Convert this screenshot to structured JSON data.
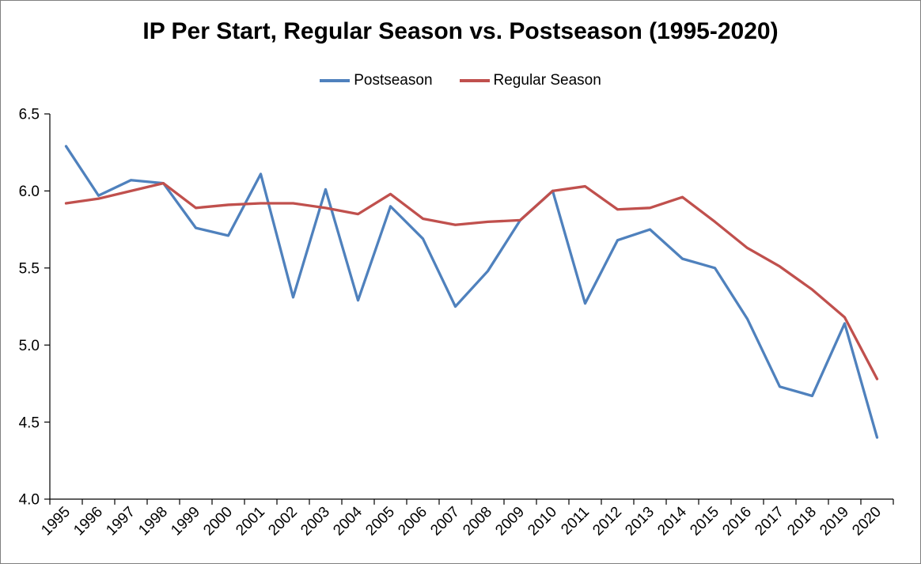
{
  "chart_data": {
    "type": "line",
    "title": "IP Per Start, Regular Season vs. Postseason (1995-2020)",
    "x": [
      1995,
      1996,
      1997,
      1998,
      1999,
      2000,
      2001,
      2002,
      2003,
      2004,
      2005,
      2006,
      2007,
      2008,
      2009,
      2010,
      2011,
      2012,
      2013,
      2014,
      2015,
      2016,
      2017,
      2018,
      2019,
      2020
    ],
    "series": [
      {
        "name": "Postseason",
        "color": "#4F81BD",
        "values": [
          6.29,
          5.97,
          6.07,
          6.05,
          5.76,
          5.71,
          6.11,
          5.31,
          6.01,
          5.29,
          5.9,
          5.69,
          5.25,
          5.48,
          5.81,
          6.0,
          5.27,
          5.68,
          5.75,
          5.56,
          5.5,
          5.17,
          4.73,
          4.67,
          5.14,
          4.4
        ]
      },
      {
        "name": "Regular Season",
        "color": "#C0504D",
        "values": [
          5.92,
          5.95,
          6.0,
          6.05,
          5.89,
          5.91,
          5.92,
          5.92,
          5.89,
          5.85,
          5.98,
          5.82,
          5.78,
          5.8,
          5.81,
          6.0,
          6.03,
          5.88,
          5.89,
          5.96,
          5.8,
          5.63,
          5.51,
          5.36,
          5.18,
          4.78
        ]
      }
    ],
    "ylim": [
      4.0,
      6.5
    ],
    "yticks": [
      4.0,
      4.5,
      5.0,
      5.5,
      6.0,
      6.5
    ],
    "grid": false,
    "legend_position": "top-center",
    "axis_color": "#000000"
  }
}
